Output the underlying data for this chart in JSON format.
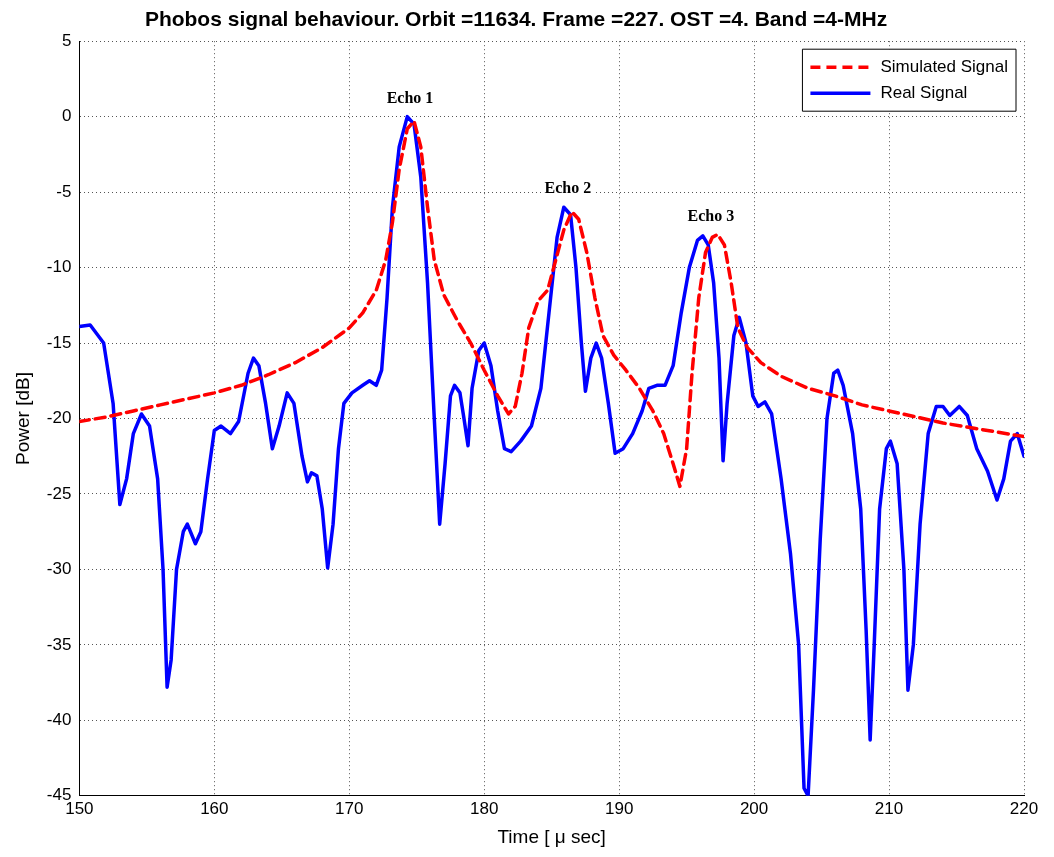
{
  "chart_data": {
    "type": "line",
    "title": "Phobos signal behaviour. Orbit =11634. Frame =227. OST =4. Band =4-MHz",
    "xlabel": "Time [ μ sec]",
    "ylabel": "Power [dB]",
    "xlim": [
      150,
      220
    ],
    "xticks": [
      150,
      160,
      170,
      180,
      190,
      200,
      210,
      220
    ],
    "ylim": [
      -45,
      5
    ],
    "yticks": [
      -45,
      -40,
      -35,
      -30,
      -25,
      -20,
      -15,
      -10,
      -5,
      0,
      5
    ],
    "grid": true,
    "legend": "top right",
    "annotations": [
      {
        "text": "Echo 1",
        "x": 174.5,
        "y": 0
      },
      {
        "text": "Echo 2",
        "x": 186.2,
        "y": -6
      },
      {
        "text": "Echo 3",
        "x": 196.8,
        "y": -7.8
      }
    ],
    "series": [
      {
        "name": "Simulated Signal",
        "color": "#ff0000",
        "line_style": "dashed",
        "x": [
          150,
          152,
          154,
          156,
          158,
          160,
          162,
          164,
          166,
          168,
          170,
          171,
          172,
          172.7,
          173.2,
          173.7,
          174.3,
          174.8,
          175.3,
          175.8,
          176.3,
          177,
          178,
          179,
          180,
          181,
          181.8,
          182.3,
          182.8,
          183.3,
          184,
          184.7,
          185.3,
          185.9,
          186.5,
          187,
          187.6,
          188.2,
          188.8,
          189.6,
          190.5,
          191.5,
          192.5,
          193.3,
          194,
          194.5,
          195,
          195.4,
          195.9,
          196.4,
          196.9,
          197.3,
          197.8,
          198.3,
          198.8,
          199.5,
          200.5,
          202,
          204,
          206,
          208,
          210,
          212,
          214,
          216,
          218,
          220
        ],
        "values": [
          -20.2,
          -19.9,
          -19.5,
          -19.1,
          -18.7,
          -18.3,
          -17.8,
          -17.1,
          -16.3,
          -15.3,
          -14,
          -13,
          -11.5,
          -9.5,
          -7,
          -3.5,
          -0.8,
          -0.3,
          -2,
          -6,
          -9.5,
          -11.8,
          -13.5,
          -15,
          -16.8,
          -18.5,
          -19.7,
          -19.2,
          -17,
          -14,
          -12.2,
          -11.5,
          -9.5,
          -7.5,
          -6.3,
          -6.8,
          -9,
          -12,
          -14.5,
          -15.8,
          -16.8,
          -18,
          -19.5,
          -21,
          -23,
          -24.5,
          -22,
          -17,
          -12,
          -9,
          -8,
          -7.8,
          -8.5,
          -11,
          -14,
          -15.3,
          -16.3,
          -17.2,
          -18,
          -18.5,
          -19.1,
          -19.5,
          -19.9,
          -20.3,
          -20.6,
          -20.9,
          -21.2
        ]
      },
      {
        "name": "Real Signal",
        "color": "#0000ff",
        "line_style": "solid",
        "x": [
          150,
          150.8,
          151.8,
          152.5,
          153,
          153.5,
          154,
          154.6,
          155.2,
          155.8,
          156.2,
          156.5,
          156.8,
          157.2,
          157.7,
          158,
          158.6,
          159,
          159.5,
          160,
          160.5,
          161.2,
          161.8,
          162.5,
          162.9,
          163.3,
          163.8,
          164.3,
          164.8,
          165.4,
          165.9,
          166.5,
          166.9,
          167.2,
          167.6,
          168,
          168.4,
          168.8,
          169.2,
          169.6,
          170.2,
          171,
          171.5,
          172,
          172.4,
          172.8,
          173.2,
          173.7,
          174.3,
          174.8,
          175.3,
          175.8,
          176.3,
          176.7,
          177.1,
          177.5,
          177.8,
          178.2,
          178.5,
          178.8,
          179.1,
          179.6,
          180,
          180.5,
          181,
          181.5,
          182,
          182.7,
          183.5,
          184.2,
          184.8,
          185.4,
          185.9,
          186.4,
          186.8,
          187.2,
          187.5,
          187.9,
          188.3,
          188.7,
          189.2,
          189.7,
          190.3,
          191,
          191.7,
          192.2,
          192.8,
          193.4,
          194,
          194.6,
          195.2,
          195.8,
          196.2,
          196.6,
          197,
          197.4,
          197.7,
          198,
          198.5,
          198.9,
          199.4,
          199.9,
          200.3,
          200.8,
          201.3,
          202,
          202.7,
          203.3,
          203.7,
          204,
          204.4,
          204.9,
          205.4,
          205.9,
          206.2,
          206.6,
          207.3,
          207.9,
          208.3,
          208.6,
          208.9,
          209.3,
          209.8,
          210.1,
          210.6,
          211.1,
          211.4,
          211.8,
          212.3,
          212.9,
          213.5,
          214,
          214.5,
          215.2,
          215.8,
          216.5,
          217.3,
          218,
          218.5,
          219,
          219.5,
          220
        ],
        "values": [
          -13.9,
          -13.8,
          -15,
          -19,
          -25.7,
          -24,
          -21,
          -19.7,
          -20.5,
          -24,
          -30,
          -37.8,
          -36,
          -30,
          -27.5,
          -27,
          -28.3,
          -27.5,
          -24,
          -20.8,
          -20.5,
          -21,
          -20.2,
          -17,
          -16,
          -16.5,
          -19,
          -22,
          -20.5,
          -18.3,
          -19,
          -22.5,
          -24.2,
          -23.6,
          -23.8,
          -26,
          -29.9,
          -27,
          -22,
          -19,
          -18.3,
          -17.8,
          -17.5,
          -17.8,
          -16.8,
          -12,
          -6,
          -2,
          0,
          -0.5,
          -4,
          -11,
          -20,
          -27,
          -23,
          -18.5,
          -17.8,
          -18.3,
          -20,
          -21.8,
          -18,
          -15.5,
          -15,
          -16.5,
          -19.5,
          -22,
          -22.2,
          -21.5,
          -20.5,
          -18,
          -13,
          -8,
          -6,
          -6.5,
          -10,
          -15,
          -18.2,
          -16,
          -15,
          -16,
          -19,
          -22.3,
          -22,
          -21,
          -19.5,
          -18,
          -17.8,
          -17.8,
          -16.5,
          -13,
          -10,
          -8.2,
          -7.9,
          -8.5,
          -11,
          -16,
          -22.8,
          -19,
          -14.5,
          -13.3,
          -15,
          -18.5,
          -19.2,
          -18.9,
          -19.7,
          -24,
          -29,
          -35,
          -44.5,
          -45,
          -38,
          -28,
          -20,
          -17,
          -16.8,
          -17.8,
          -21,
          -26,
          -34,
          -41.3,
          -35,
          -26,
          -22,
          -21.5,
          -23,
          -30,
          -38,
          -35,
          -27,
          -21,
          -19.2,
          -19.2,
          -19.8,
          -19.2,
          -19.8,
          -22,
          -23.5,
          -25.4,
          -24,
          -21.5,
          -21,
          -22.5
        ]
      }
    ]
  }
}
